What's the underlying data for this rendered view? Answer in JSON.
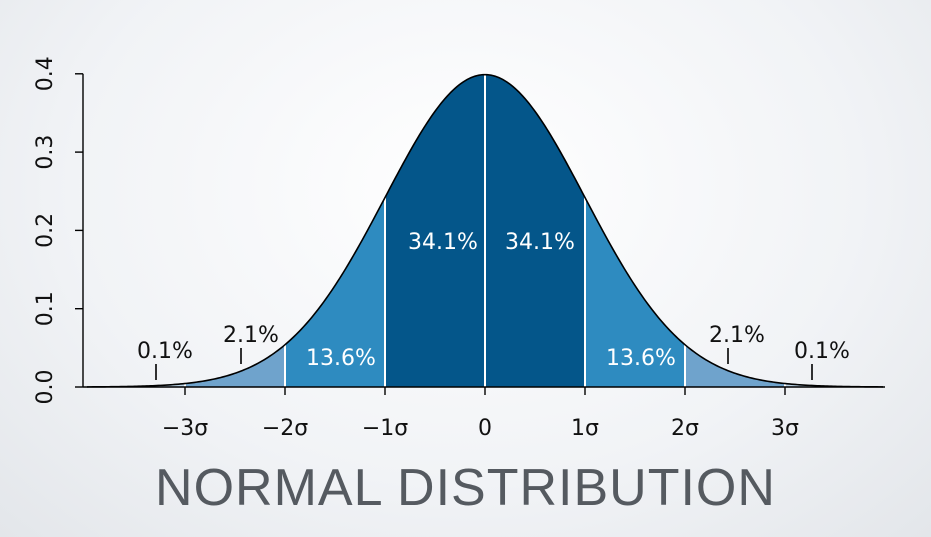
{
  "slide": {
    "title": "NORMAL DISTRIBUTION"
  },
  "chart_data": {
    "type": "area",
    "title": "",
    "xlabel": "",
    "ylabel": "",
    "xlim": [
      -4,
      4
    ],
    "ylim": [
      0,
      0.4
    ],
    "x_ticks": [
      {
        "value": -3,
        "label": "−3σ"
      },
      {
        "value": -2,
        "label": "−2σ"
      },
      {
        "value": -1,
        "label": "−1σ"
      },
      {
        "value": 0,
        "label": "0"
      },
      {
        "value": 1,
        "label": "1σ"
      },
      {
        "value": 2,
        "label": "2σ"
      },
      {
        "value": 3,
        "label": "3σ"
      }
    ],
    "y_ticks": [
      {
        "value": 0,
        "label": "0.0"
      },
      {
        "value": 0.1,
        "label": "0.1"
      },
      {
        "value": 0.2,
        "label": "0.2"
      },
      {
        "value": 0.3,
        "label": "0.3"
      },
      {
        "value": 0.4,
        "label": "0.4"
      }
    ],
    "regions": [
      {
        "from": -4,
        "to": -3,
        "percent": "0.1%",
        "color": "#b9d3e6"
      },
      {
        "from": -3,
        "to": -2,
        "percent": "2.1%",
        "color": "#6fa3cc"
      },
      {
        "from": -2,
        "to": -1,
        "percent": "13.6%",
        "color": "#2e8bc0"
      },
      {
        "from": -1,
        "to": 0,
        "percent": "34.1%",
        "color": "#04568a"
      },
      {
        "from": 0,
        "to": 1,
        "percent": "34.1%",
        "color": "#04568a"
      },
      {
        "from": 1,
        "to": 2,
        "percent": "13.6%",
        "color": "#2e8bc0"
      },
      {
        "from": 2,
        "to": 3,
        "percent": "2.1%",
        "color": "#6fa3cc"
      },
      {
        "from": 3,
        "to": 4,
        "percent": "0.1%",
        "color": "#b9d3e6"
      }
    ],
    "grid": false
  }
}
